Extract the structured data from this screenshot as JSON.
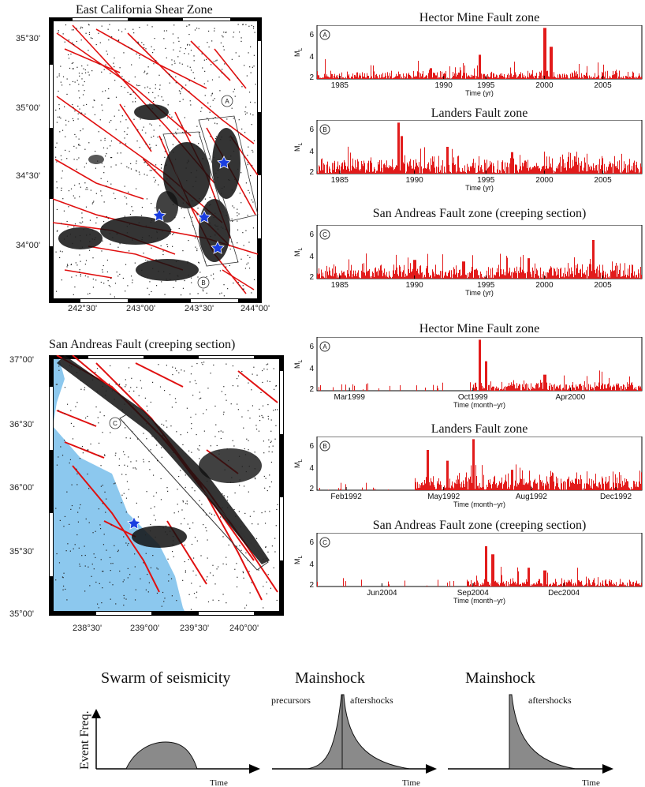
{
  "maps": {
    "top": {
      "title": "East California Shear Zone",
      "lat_labels": [
        "35°30'",
        "35°00'",
        "34°30'",
        "34°00'"
      ],
      "lon_labels": [
        "242°30'",
        "243°00'",
        "243°30'",
        "244°00'"
      ],
      "markers": [
        "A",
        "B"
      ]
    },
    "bottom": {
      "title": "San Andreas Fault (creeping section)",
      "lat_labels": [
        "37°00'",
        "36°30'",
        "36°00'",
        "35°30'",
        "35°00'"
      ],
      "lon_labels": [
        "238°30'",
        "239°00'",
        "239°30'",
        "240°00'"
      ],
      "markers": [
        "C"
      ]
    }
  },
  "timeseries": [
    {
      "title": "Hector Mine Fault zone",
      "letter": "A",
      "ylabel": "M",
      "ylabel_sub": "L",
      "yticks": [
        "6",
        "4",
        "2"
      ],
      "xticks": [
        "1985",
        "1990",
        "1995",
        "2000",
        "2005"
      ],
      "xlabel": "Time (yr)"
    },
    {
      "title": "Landers Fault zone",
      "letter": "B",
      "ylabel": "M",
      "ylabel_sub": "L",
      "yticks": [
        "6",
        "4",
        "2"
      ],
      "xticks": [
        "1985",
        "1990",
        "1995",
        "2000",
        "2005"
      ],
      "xlabel": "Time (yr)"
    },
    {
      "title": "San Andreas Fault zone (creeping section)",
      "letter": "C",
      "ylabel": "M",
      "ylabel_sub": "L",
      "yticks": [
        "6",
        "4",
        "2"
      ],
      "xticks": [
        "1985",
        "1990",
        "1995",
        "2000",
        "2005"
      ],
      "xlabel": "Time (yr)"
    },
    {
      "title": "Hector Mine Fault zone",
      "letter": "A",
      "ylabel": "M",
      "ylabel_sub": "L",
      "yticks": [
        "6",
        "4",
        "2"
      ],
      "xticks": [
        "Mar1999",
        "Oct1999",
        "Apr2000"
      ],
      "xlabel": "Time (month−yr)"
    },
    {
      "title": "Landers Fault zone",
      "letter": "B",
      "ylabel": "M",
      "ylabel_sub": "L",
      "yticks": [
        "6",
        "4",
        "2"
      ],
      "xticks": [
        "Feb1992",
        "May1992",
        "Aug1992",
        "Dec1992"
      ],
      "xlabel": "Time (month−yr)"
    },
    {
      "title": "San Andreas Fault zone (creeping section)",
      "letter": "C",
      "ylabel": "M",
      "ylabel_sub": "L",
      "yticks": [
        "6",
        "4",
        "2"
      ],
      "xticks": [
        "Jun2004",
        "Sep2004",
        "Dec2004"
      ],
      "xlabel": "Time (month−yr)"
    }
  ],
  "schematic": {
    "ylabel": "Event Freq.",
    "panels": [
      {
        "title": "Swarm of seismicity",
        "labels": [],
        "xlabel": "Time"
      },
      {
        "title": "Mainshock",
        "labels": [
          "precursors",
          "aftershocks"
        ],
        "xlabel": "Time"
      },
      {
        "title": "Mainshock",
        "labels": [
          "aftershocks"
        ],
        "xlabel": "Time"
      }
    ]
  },
  "colors": {
    "fault": "#e01010",
    "sea": "#8cc8ee",
    "bars": "#e21b1b",
    "star": "#1a3ee0",
    "fill": "#8a8a8a"
  }
}
